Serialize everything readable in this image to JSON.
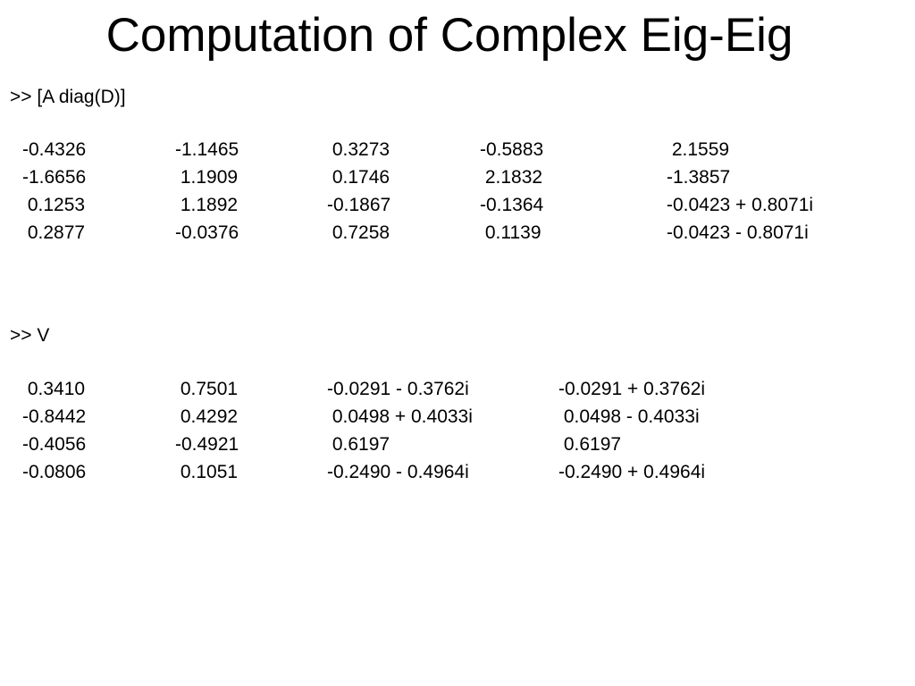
{
  "slide": {
    "title": "Computation of Complex Eig-Eig"
  },
  "block1": {
    "command": ">> [A diag(D)]",
    "rows": [
      [
        "-0.4326",
        "-1.1465",
        " 0.3273",
        "-0.5883",
        " 2.1559"
      ],
      [
        "-1.6656",
        " 1.1909",
        " 0.1746",
        " 2.1832",
        "-1.3857"
      ],
      [
        " 0.1253",
        " 1.1892",
        "-0.1867",
        "-0.1364",
        "-0.0423 + 0.8071i"
      ],
      [
        " 0.2877",
        "-0.0376",
        " 0.7258",
        " 0.1139",
        "-0.0423 - 0.8071i"
      ]
    ]
  },
  "block2": {
    "command": ">> V",
    "rows": [
      [
        " 0.3410",
        " 0.7501",
        "-0.0291 - 0.3762i",
        "-0.0291 + 0.3762i"
      ],
      [
        "-0.8442",
        " 0.4292",
        " 0.0498 + 0.4033i",
        " 0.0498 - 0.4033i"
      ],
      [
        "-0.4056",
        "-0.4921",
        " 0.6197",
        " 0.6197"
      ],
      [
        "-0.0806",
        " 0.1051",
        "-0.2490 - 0.4964i",
        "-0.2490 + 0.4964i"
      ]
    ]
  }
}
